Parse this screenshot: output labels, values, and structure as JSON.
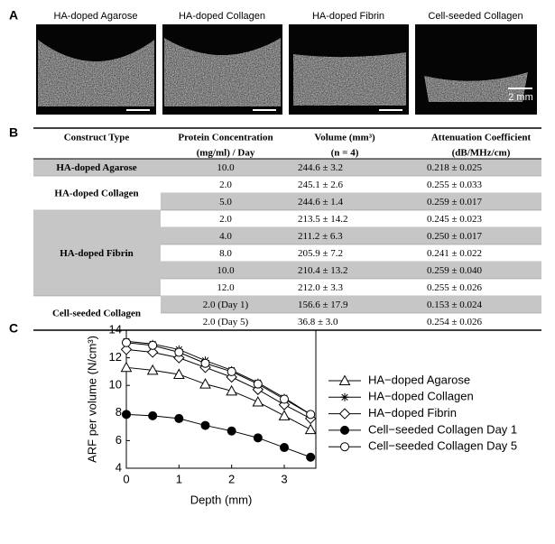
{
  "panel_a": {
    "label": "A",
    "images": [
      {
        "title": "HA-doped Agarose"
      },
      {
        "title": "HA-doped Collagen"
      },
      {
        "title": "HA-doped Fibrin"
      },
      {
        "title": "Cell-seeded Collagen"
      }
    ],
    "scale_bar": "2 mm"
  },
  "panel_b": {
    "label": "B",
    "header": [
      [
        "Construct Type"
      ],
      [
        "Protein Concentration",
        "(mg/ml) / Day"
      ],
      [
        "Volume (mm³)",
        "(n = 4)"
      ],
      [
        "Attenuation Coefficient",
        "(dB/MHz/cm)"
      ]
    ],
    "groups": [
      {
        "name": "HA-doped Agarose",
        "rows": [
          [
            "10.0",
            "244.6 ± 3.2",
            "0.218 ± 0.025"
          ]
        ]
      },
      {
        "name": "HA-doped Collagen",
        "rows": [
          [
            "2.0",
            "245.1 ± 2.6",
            "0.255 ± 0.033"
          ],
          [
            "5.0",
            "244.6 ± 1.4",
            "0.259 ± 0.017"
          ]
        ]
      },
      {
        "name": "HA-doped Fibrin",
        "rows": [
          [
            "2.0",
            "213.5 ± 14.2",
            "0.245 ± 0.023"
          ],
          [
            "4.0",
            "211.2 ± 6.3",
            "0.250 ± 0.017"
          ],
          [
            "8.0",
            "205.9 ± 7.2",
            "0.241 ± 0.022"
          ],
          [
            "10.0",
            "210.4 ± 13.2",
            "0.259 ± 0.040"
          ],
          [
            "12.0",
            "212.0 ± 3.3",
            "0.255 ± 0.026"
          ]
        ]
      },
      {
        "name": "Cell-seeded Collagen",
        "rows": [
          [
            "2.0 (Day 1)",
            "156.6 ± 17.9",
            "0.153 ± 0.024"
          ],
          [
            "2.0 (Day 5)",
            "36.8 ± 3.0",
            "0.254 ± 0.026"
          ]
        ]
      }
    ]
  },
  "panel_c_label": "C",
  "chart_data": {
    "type": "line",
    "xlabel": "Depth (mm)",
    "ylabel": "ARF per volume (N/cm³)",
    "x": [
      0,
      0.5,
      1,
      1.5,
      2,
      2.5,
      3,
      3.5
    ],
    "series": [
      {
        "name": "HA−doped Agarose",
        "color": "#000000",
        "marker": "triangle",
        "values": [
          11.3,
          11.1,
          10.8,
          10.1,
          9.6,
          8.8,
          7.8,
          6.8
        ]
      },
      {
        "name": "HA−doped Collagen",
        "color": "#000000",
        "marker": "asterisk",
        "values": [
          13.2,
          13.0,
          12.6,
          11.8,
          11.1,
          10.2,
          9.1,
          7.9
        ]
      },
      {
        "name": "HA−doped Fibrin",
        "color": "#000000",
        "marker": "diamond",
        "values": [
          12.6,
          12.4,
          12.0,
          11.3,
          10.6,
          9.7,
          8.6,
          7.6
        ]
      },
      {
        "name": "Cell−seeded Collagen Day 1",
        "color": "#000000",
        "marker": "filled-circle",
        "values": [
          7.9,
          7.8,
          7.6,
          7.1,
          6.7,
          6.2,
          5.5,
          4.8
        ]
      },
      {
        "name": "Cell−seeded Collagen Day 5",
        "color": "#000000",
        "marker": "circle",
        "values": [
          13.1,
          12.9,
          12.4,
          11.6,
          11.0,
          10.1,
          9.0,
          7.9
        ]
      }
    ],
    "xlim": [
      0,
      3.6
    ],
    "ylim": [
      4,
      14
    ],
    "xticks": [
      0,
      1,
      2,
      3
    ],
    "yticks": [
      4,
      6,
      8,
      10,
      12,
      14
    ],
    "legend": "right"
  }
}
